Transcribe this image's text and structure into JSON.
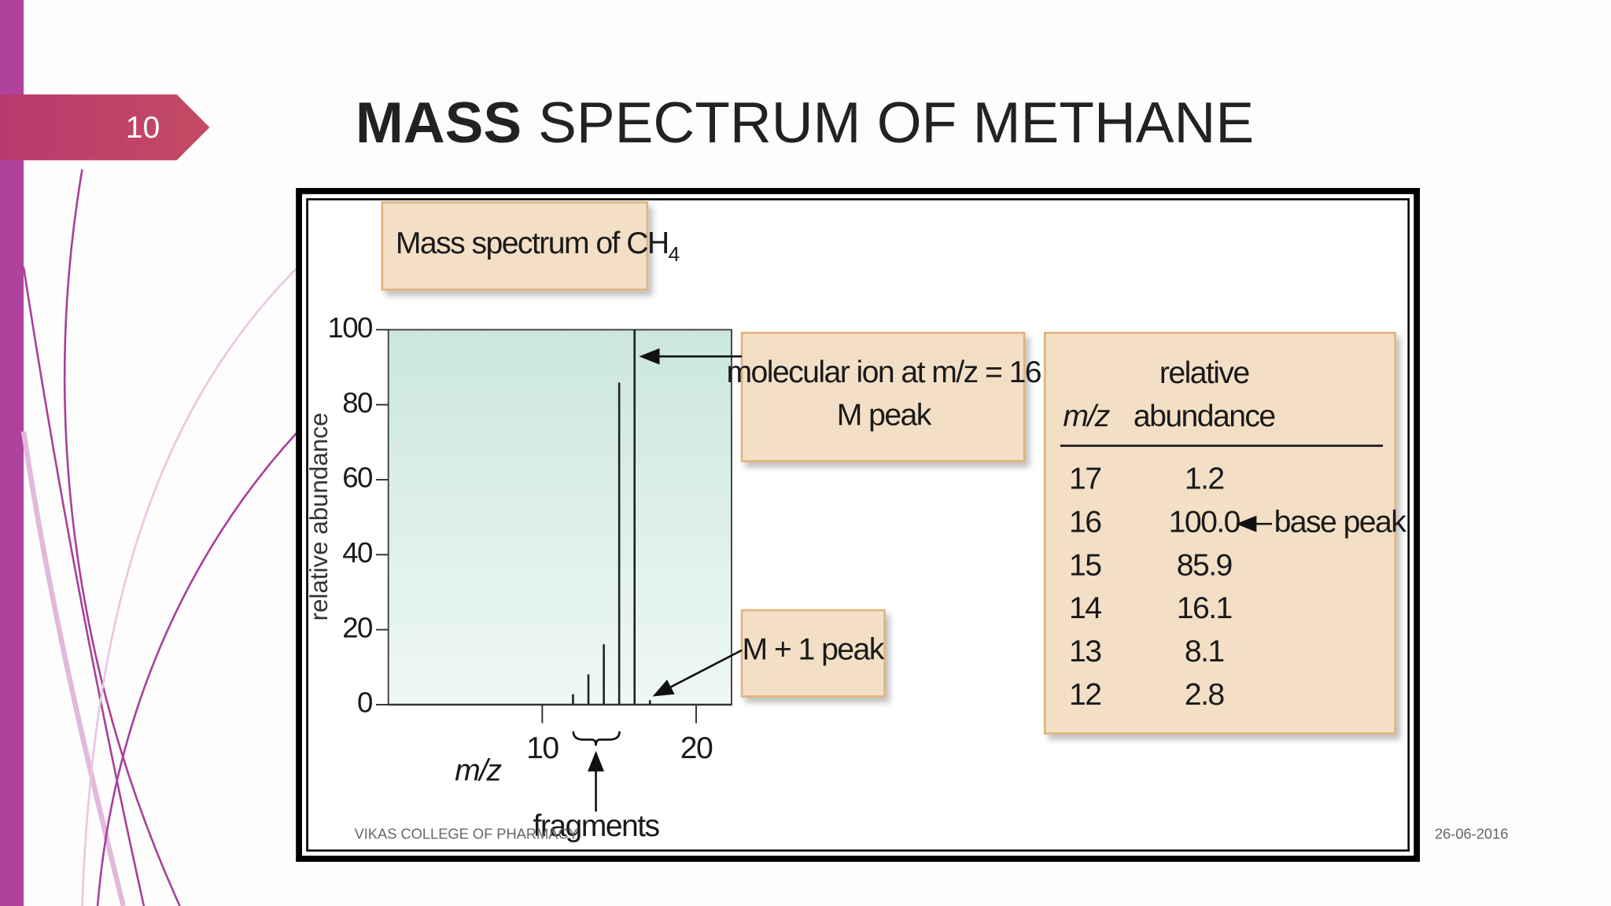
{
  "slide": {
    "page_number": "10",
    "title_bold": "MASS",
    "title_rest": "SPECTRUM OF METHANE",
    "footer": "VIKAS COLLEGE OF PHARMACY",
    "date": "26-06-2016"
  },
  "chart_data": {
    "type": "bar",
    "title": "Mass spectrum of CH",
    "title_subscript": "4",
    "x_label": "m/z",
    "y_label": "relative abundance",
    "x": [
      17,
      16,
      15,
      14,
      13,
      12
    ],
    "values": [
      1.2,
      100.0,
      85.9,
      16.1,
      8.1,
      2.8
    ],
    "value_labels": [
      "1.2",
      "100.0",
      "85.9",
      "16.1",
      "8.1",
      "2.8"
    ],
    "color": "#222222",
    "xlim": [
      0,
      22.3
    ],
    "ylim": [
      0,
      100
    ],
    "xticks": [
      10,
      20
    ],
    "yticks": [
      0,
      20,
      40,
      60,
      80,
      100
    ],
    "annotations": {
      "molecular_ion": "molecular ion at m/z = 16",
      "m_peak": "M peak",
      "m_plus_1": "M + 1 peak",
      "fragments": "fragments",
      "base_peak": "base peak"
    },
    "table": {
      "x_header": "m/z",
      "value_header": [
        "relative",
        "abundance"
      ]
    }
  }
}
